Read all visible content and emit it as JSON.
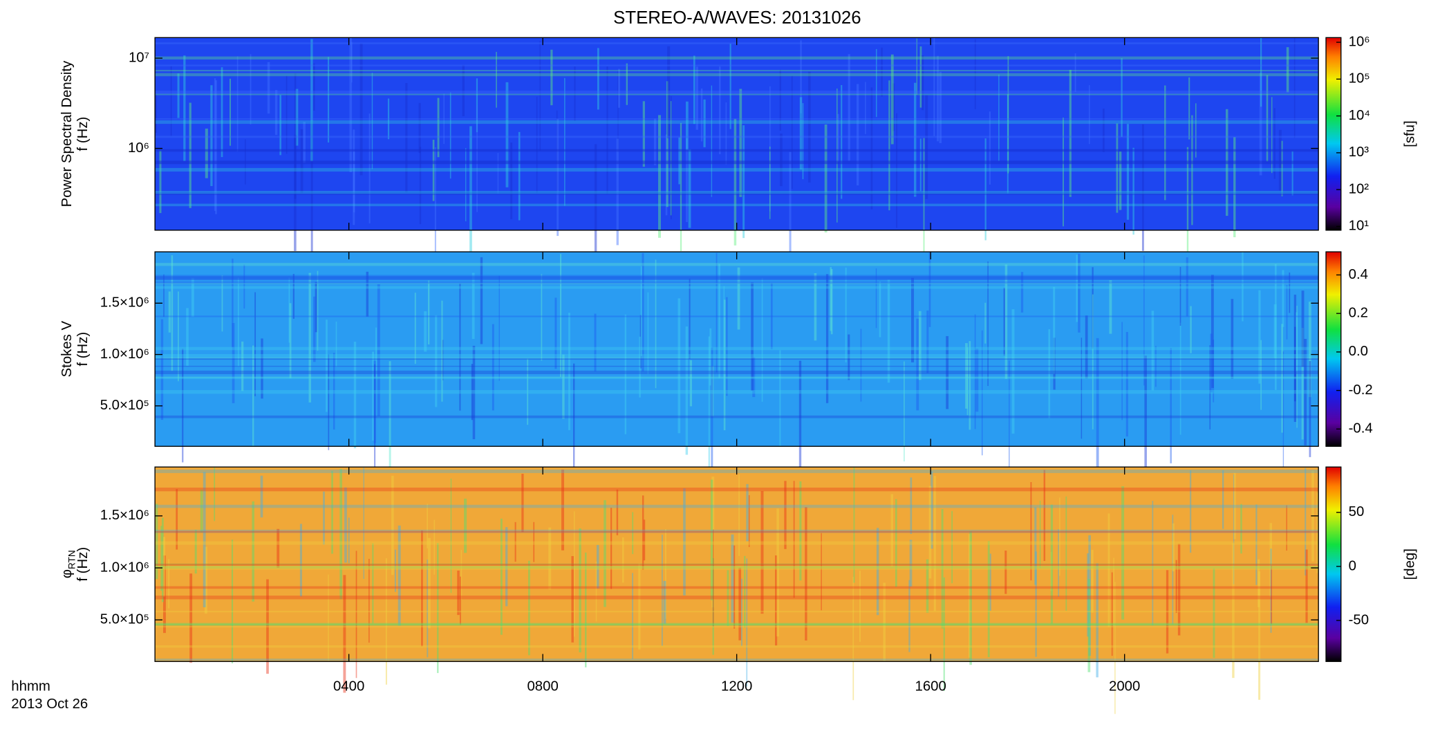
{
  "chart_data": [
    {
      "type": "heatmap",
      "title": "STEREO-A/WAVES: 20131026",
      "y_label": "Power Spectral Density",
      "y_label2": "f (Hz)",
      "ylog": true,
      "ylim": [
        124000,
        16900000
      ],
      "yticks": [
        {
          "value": 1000000,
          "label": "10⁶"
        },
        {
          "value": 10000000,
          "label": "10⁷"
        }
      ],
      "base_color": "#1e46f0",
      "colorbar": {
        "label": "[sfu]",
        "log": true,
        "lim": [
          7.9,
          1340000
        ],
        "ticks": [
          {
            "value": 10,
            "label": "10¹"
          },
          {
            "value": 100,
            "label": "10²"
          },
          {
            "value": 1000,
            "label": "10³"
          },
          {
            "value": 10000,
            "label": "10⁴"
          },
          {
            "value": 100000,
            "label": "10⁵"
          },
          {
            "value": 1000000,
            "label": "10⁶"
          }
        ]
      }
    },
    {
      "type": "heatmap",
      "y_label": "Stokes V",
      "y_label2": "f (Hz)",
      "ylog": false,
      "ylim": [
        106000,
        2000000
      ],
      "yticks": [
        {
          "value": 500000,
          "label": "5.0×10⁵"
        },
        {
          "value": 1000000,
          "label": "1.0×10⁶"
        },
        {
          "value": 1500000,
          "label": "1.5×10⁶"
        }
      ],
      "base_color": "#2a9cf2",
      "colorbar": {
        "log": false,
        "lim": [
          -0.49,
          0.52
        ],
        "ticks": [
          -0.4,
          -0.2,
          {
            "value": 0,
            "label": "0.0"
          },
          0.2,
          0.4
        ]
      }
    },
    {
      "type": "heatmap",
      "y_label": "φ",
      "y_label_sub": "RTN",
      "y_label2": "f (Hz)",
      "ylog": false,
      "ylim": [
        100000,
        1970000
      ],
      "yticks": [
        {
          "value": 500000,
          "label": "5.0×10⁵"
        },
        {
          "value": 1000000,
          "label": "1.0×10⁶"
        },
        {
          "value": 1500000,
          "label": "1.5×10⁶"
        }
      ],
      "base_color": "#f0a838",
      "colorbar": {
        "label": "[deg]",
        "log": false,
        "lim": [
          -88,
          92
        ],
        "ticks": [
          -50,
          0,
          50
        ]
      },
      "x_label": "hhmm",
      "date": "2013 Oct 26",
      "xlim": [
        0,
        24
      ],
      "xticks": [
        {
          "value": 4,
          "label": "0400"
        },
        {
          "value": 8,
          "label": "0800"
        },
        {
          "value": 12,
          "label": "1200"
        },
        {
          "value": 16,
          "label": "1600"
        },
        {
          "value": 20,
          "label": "2000"
        }
      ]
    }
  ]
}
